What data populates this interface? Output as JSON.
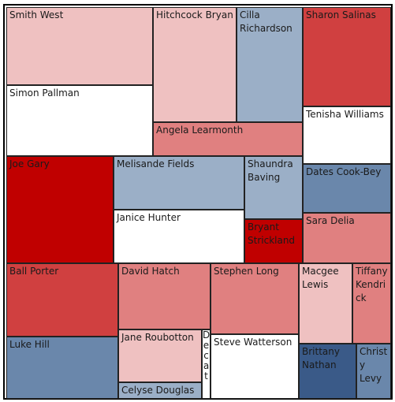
{
  "chart_data": {
    "type": "treemap",
    "title": "",
    "colors": {
      "dark-red": "#c00000",
      "red": "#d04040",
      "mid-red": "#e08080",
      "light-red": "#efc1c1",
      "white": "#ffffff",
      "light-blue": "#9bafc7",
      "mid-blue": "#6a87ab",
      "dark-blue": "#3a5a88"
    },
    "items": [
      {
        "label": "Smith West",
        "color": "#efc1c1"
      },
      {
        "label": "Simon Pallman",
        "color": "#ffffff"
      },
      {
        "label": "Hitchcock Bryan",
        "color": "#efc1c1"
      },
      {
        "label": "Cilla Richardson",
        "color": "#9bafc7"
      },
      {
        "label": "Angela Learmonth",
        "color": "#e08080"
      },
      {
        "label": "Sharon Salinas",
        "color": "#d04040"
      },
      {
        "label": "Tenisha Williams",
        "color": "#ffffff"
      },
      {
        "label": "Joe Gary",
        "color": "#c00000"
      },
      {
        "label": "Melisande Fields",
        "color": "#9bafc7"
      },
      {
        "label": "Janice Hunter",
        "color": "#ffffff"
      },
      {
        "label": "Shaundra Baving",
        "color": "#9bafc7"
      },
      {
        "label": "Bryant Strickland",
        "color": "#c00000"
      },
      {
        "label": "Dates Cook-Bey",
        "color": "#6a87ab"
      },
      {
        "label": "Sara Delia",
        "color": "#e08080"
      },
      {
        "label": "Ball Porter",
        "color": "#d04040"
      },
      {
        "label": "Luke Hill",
        "color": "#6a87ab"
      },
      {
        "label": "David Hatch",
        "color": "#e08080"
      },
      {
        "label": "Jane Roubotton",
        "color": "#efc1c1"
      },
      {
        "label": "Celyse Douglas",
        "color": "#9bafc7"
      },
      {
        "label": "Decat",
        "color": "#ffffff"
      },
      {
        "label": "Stephen Long",
        "color": "#e08080"
      },
      {
        "label": "Steve Watterson",
        "color": "#ffffff"
      },
      {
        "label": "Macgee Lewis",
        "color": "#efc1c1"
      },
      {
        "label": "Tiffany Kendrick",
        "color": "#e08080"
      },
      {
        "label": "Brittany Nathan",
        "color": "#3a5a88"
      },
      {
        "label": "Christy Levy",
        "color": "#6a87ab"
      }
    ]
  }
}
